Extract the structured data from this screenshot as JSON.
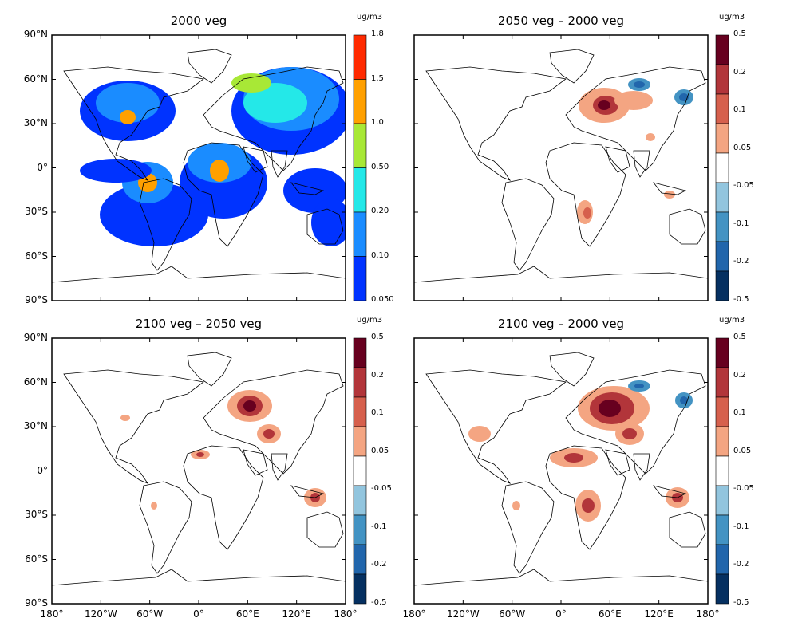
{
  "lat_labels": [
    "90°N",
    "60°N",
    "30°N",
    "0°",
    "30°S",
    "60°S",
    "90°S"
  ],
  "lon_labels": [
    "180°",
    "120°W",
    "60°W",
    "0°",
    "60°E",
    "120°E",
    "180°"
  ],
  "panels": [
    {
      "title": "2000 veg",
      "unit": "ug/m3",
      "colorbar_labels": [
        "1.8",
        "1.5",
        "1.0",
        "0.50",
        "0.20",
        "0.10",
        "0.050"
      ],
      "colors": [
        "#ff2a00",
        "#ffa000",
        "#a8e836",
        "#24e8e8",
        "#1a8cff",
        "#0033ff"
      ]
    },
    {
      "title": "2050 veg – 2000 veg",
      "unit": "ug/m3",
      "colorbar_labels": [
        "0.5",
        "0.2",
        "0.1",
        "0.05",
        "-0.05",
        "-0.1",
        "-0.2",
        "-0.5"
      ],
      "colors": [
        "#67001f",
        "#b2353a",
        "#d6604d",
        "#f4a582",
        "#ffffff",
        "#92c5de",
        "#4393c3",
        "#2166ac",
        "#053061"
      ]
    },
    {
      "title": "2100 veg – 2050 veg",
      "unit": "ug/m3",
      "colorbar_labels": [
        "0.5",
        "0.2",
        "0.1",
        "0.05",
        "-0.05",
        "-0.1",
        "-0.2",
        "-0.5"
      ],
      "colors": [
        "#67001f",
        "#b2353a",
        "#d6604d",
        "#f4a582",
        "#ffffff",
        "#92c5de",
        "#4393c3",
        "#2166ac",
        "#053061"
      ]
    },
    {
      "title": "2100 veg – 2000 veg",
      "unit": "ug/m3",
      "colorbar_labels": [
        "0.5",
        "0.2",
        "0.1",
        "0.05",
        "-0.05",
        "-0.1",
        "-0.2",
        "-0.5"
      ],
      "colors": [
        "#67001f",
        "#b2353a",
        "#d6604d",
        "#f4a582",
        "#ffffff",
        "#92c5de",
        "#4393c3",
        "#2166ac",
        "#053061"
      ]
    }
  ]
}
